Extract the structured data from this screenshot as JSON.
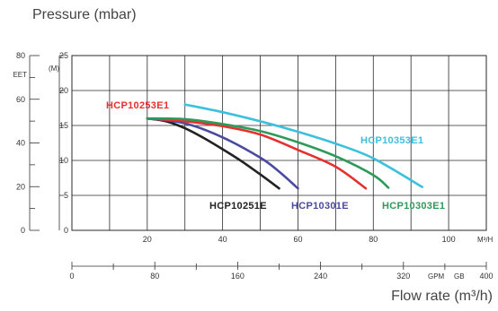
{
  "header": {
    "title": "Pressure (mbar)"
  },
  "footer": {
    "xlabel": "Flow rate (m³/h)"
  },
  "chart_data": {
    "type": "line",
    "title": "Pressure (mbar)",
    "xlabel": "Flow rate (m³/h)",
    "ylabel": "Pressure (mbar)",
    "grid": true,
    "axes": {
      "x_m3h": {
        "range": [
          0,
          110
        ],
        "unit": "M³/H",
        "ticks": [
          "20",
          "40",
          "60",
          "80",
          "100"
        ]
      },
      "x_gpm": {
        "range": [
          0,
          400
        ],
        "unit_labels": [
          "GPM",
          "GB"
        ],
        "ticks": [
          "0",
          "80",
          "160",
          "240",
          "320",
          "400"
        ]
      },
      "y_m": {
        "range": [
          0,
          25
        ],
        "unit": "(M)",
        "ticks": [
          "5",
          "10",
          "15",
          "20",
          "25"
        ]
      },
      "y_feet": {
        "range": [
          0,
          80
        ],
        "unit": "EET",
        "ticks": [
          "0",
          "20",
          "40",
          "60",
          "80"
        ]
      }
    },
    "series": [
      {
        "name": "HCP10251E",
        "color": "#222222",
        "x": [
          20,
          25,
          30,
          35,
          40,
          45,
          50,
          55
        ],
        "y": [
          16,
          15.6,
          14.6,
          13.2,
          11.6,
          9.9,
          8.0,
          6.0
        ]
      },
      {
        "name": "HCP10301E",
        "color": "#4a4aa0",
        "x": [
          20,
          30,
          40,
          50,
          55,
          60
        ],
        "y": [
          16,
          15.3,
          13.3,
          10.4,
          8.4,
          6.0
        ]
      },
      {
        "name": "HCP10253E1",
        "color": "#e53030",
        "x": [
          20,
          30,
          40,
          50,
          60,
          70,
          78
        ],
        "y": [
          16,
          15.6,
          14.9,
          13.7,
          11.5,
          9.1,
          6.0
        ]
      },
      {
        "name": "HCP10303E1",
        "color": "#2e9a5a",
        "x": [
          20,
          30,
          40,
          50,
          60,
          70,
          80,
          84
        ],
        "y": [
          16,
          15.9,
          15.2,
          14.2,
          12.6,
          10.6,
          7.9,
          6.1
        ]
      },
      {
        "name": "HCP10353E1",
        "color": "#3cc0dd",
        "x": [
          30,
          40,
          50,
          60,
          70,
          80,
          93
        ],
        "y": [
          18,
          16.9,
          15.6,
          14.1,
          12.4,
          10.3,
          6.2
        ]
      }
    ]
  }
}
